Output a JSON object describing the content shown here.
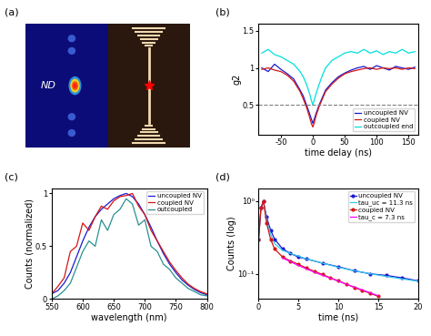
{
  "image_panel": {
    "panel_label": "(a)",
    "text": "ND"
  },
  "chart_data": [
    {
      "type": "line",
      "panel_label": "(b)",
      "x_label": "time delay (ns)",
      "y_label": "g2",
      "xlim": [
        -85,
        165
      ],
      "ylim": [
        0.1,
        1.6
      ],
      "xticks": [
        -50,
        0,
        50,
        100,
        150
      ],
      "yticks": [
        0.5,
        1,
        1.5
      ],
      "threshold": 0.5,
      "legend": "lower right",
      "grid": false,
      "x": [
        -80,
        -70,
        -60,
        -50,
        -40,
        -30,
        -20,
        -15,
        -10,
        -5,
        -2,
        0,
        2,
        5,
        10,
        15,
        20,
        30,
        40,
        50,
        60,
        70,
        80,
        90,
        100,
        110,
        120,
        130,
        140,
        150,
        160
      ],
      "series": [
        {
          "name": "uncoupled NV",
          "color": "#1a1ad0",
          "line_style": "solid",
          "values": [
            1.0,
            0.95,
            1.05,
            0.98,
            0.92,
            0.85,
            0.7,
            0.62,
            0.5,
            0.38,
            0.3,
            0.25,
            0.3,
            0.38,
            0.5,
            0.6,
            0.7,
            0.8,
            0.88,
            0.93,
            0.97,
            1.0,
            1.02,
            0.98,
            1.03,
            1.0,
            0.97,
            1.02,
            1.0,
            0.98,
            1.01
          ]
        },
        {
          "name": "coupled NV",
          "color": "#d41515",
          "line_style": "solid",
          "values": [
            0.98,
            1.0,
            0.97,
            0.95,
            0.9,
            0.82,
            0.68,
            0.58,
            0.47,
            0.33,
            0.24,
            0.2,
            0.25,
            0.35,
            0.48,
            0.58,
            0.68,
            0.78,
            0.86,
            0.92,
            0.95,
            0.97,
            0.99,
            1.0,
            0.98,
            1.0,
            0.99,
            1.0,
            0.98,
            1.0,
            0.99
          ]
        },
        {
          "name": "outcoupled end",
          "color": "#00e0e0",
          "line_style": "solid",
          "values": [
            1.2,
            1.25,
            1.18,
            1.15,
            1.1,
            1.05,
            0.95,
            0.88,
            0.78,
            0.65,
            0.55,
            0.5,
            0.56,
            0.65,
            0.78,
            0.9,
            1.0,
            1.1,
            1.15,
            1.2,
            1.22,
            1.2,
            1.25,
            1.2,
            1.23,
            1.18,
            1.22,
            1.2,
            1.25,
            1.2,
            1.22
          ]
        }
      ]
    },
    {
      "type": "line",
      "panel_label": "(c)",
      "x_label": "wavelength (nm)",
      "y_label": "Counts (normalized)",
      "xlim": [
        550,
        800
      ],
      "ylim": [
        0,
        1.05
      ],
      "xticks": [
        550,
        600,
        650,
        700,
        750,
        800
      ],
      "yticks": [
        0,
        0.5,
        1
      ],
      "legend": "upper right",
      "grid": false,
      "x": [
        550,
        560,
        570,
        580,
        590,
        600,
        610,
        620,
        630,
        640,
        650,
        660,
        670,
        680,
        690,
        700,
        710,
        720,
        730,
        740,
        750,
        760,
        770,
        780,
        790,
        800
      ],
      "series": [
        {
          "name": "uncoupled NV",
          "color": "#1a1ad0",
          "line_style": "solid",
          "values": [
            0.05,
            0.08,
            0.15,
            0.25,
            0.4,
            0.55,
            0.68,
            0.78,
            0.85,
            0.9,
            0.95,
            0.98,
            1.0,
            0.97,
            0.9,
            0.8,
            0.68,
            0.55,
            0.43,
            0.33,
            0.25,
            0.18,
            0.13,
            0.09,
            0.06,
            0.04
          ]
        },
        {
          "name": "coupled NV",
          "color": "#d41515",
          "line_style": "solid",
          "values": [
            0.05,
            0.12,
            0.2,
            0.45,
            0.5,
            0.72,
            0.65,
            0.78,
            0.88,
            0.85,
            0.93,
            0.97,
            0.98,
            1.0,
            0.88,
            0.8,
            0.65,
            0.55,
            0.45,
            0.35,
            0.27,
            0.2,
            0.14,
            0.1,
            0.07,
            0.05
          ]
        },
        {
          "name": "outcoupled",
          "color": "#2a9090",
          "line_style": "solid",
          "values": [
            0.0,
            0.03,
            0.08,
            0.15,
            0.3,
            0.45,
            0.55,
            0.5,
            0.75,
            0.65,
            0.8,
            0.85,
            0.95,
            0.9,
            0.7,
            0.75,
            0.5,
            0.45,
            0.33,
            0.28,
            0.2,
            0.15,
            0.1,
            0.07,
            0.04,
            0.03
          ]
        }
      ]
    },
    {
      "type": "line",
      "panel_label": "(d)",
      "x_label": "time (ns)",
      "y_label": "Counts (log)",
      "log": "y",
      "xlim": [
        0,
        20
      ],
      "ylim": [
        0.045,
        1.5
      ],
      "xticks": [
        0,
        5,
        10,
        15,
        20
      ],
      "yticks": [
        {
          "value": 0.1,
          "label": "10⁻¹"
        },
        {
          "value": 1,
          "label": "10⁰"
        }
      ],
      "legend": "upper right",
      "grid": false,
      "series": [
        {
          "name": "uncoupled NV",
          "color": "#1a1ad0",
          "marker": "o",
          "line_style": "solid",
          "x": [
            0,
            0.3,
            0.6,
            1,
            1.5,
            2,
            3,
            4,
            5,
            6,
            8,
            10,
            12,
            14,
            16,
            18,
            20
          ],
          "values": [
            0.3,
            0.8,
            1.0,
            0.6,
            0.4,
            0.3,
            0.22,
            0.19,
            0.17,
            0.16,
            0.14,
            0.125,
            0.11,
            0.1,
            0.095,
            0.088,
            0.08
          ]
        },
        {
          "name": "tau_uc = 11.3 ns",
          "color": "#33ccee",
          "line_style": "solid",
          "x": [
            0.6,
            1,
            1.5,
            2,
            3,
            4,
            5,
            6,
            8,
            10,
            12,
            14,
            16,
            18,
            20
          ],
          "values": [
            1.0,
            0.55,
            0.35,
            0.26,
            0.21,
            0.19,
            0.175,
            0.16,
            0.14,
            0.123,
            0.11,
            0.1,
            0.092,
            0.085,
            0.079
          ]
        },
        {
          "name": "coupled NV",
          "color": "#d41515",
          "marker": "o",
          "line_style": "solid",
          "x": [
            0,
            0.3,
            0.6,
            1,
            1.5,
            2,
            3,
            4,
            5,
            6,
            7,
            8,
            9,
            10,
            11,
            12,
            13,
            14,
            15
          ],
          "values": [
            0.3,
            0.8,
            1.0,
            0.5,
            0.3,
            0.22,
            0.17,
            0.15,
            0.135,
            0.12,
            0.108,
            0.098,
            0.088,
            0.08,
            0.072,
            0.065,
            0.059,
            0.054,
            0.049
          ]
        },
        {
          "name": "tau_c = 7.3 ns",
          "color": "#ff00ff",
          "line_style": "solid",
          "x": [
            3,
            5,
            7,
            9,
            11,
            13,
            15
          ],
          "values": [
            0.165,
            0.13,
            0.105,
            0.087,
            0.072,
            0.06,
            0.05
          ]
        }
      ]
    }
  ]
}
